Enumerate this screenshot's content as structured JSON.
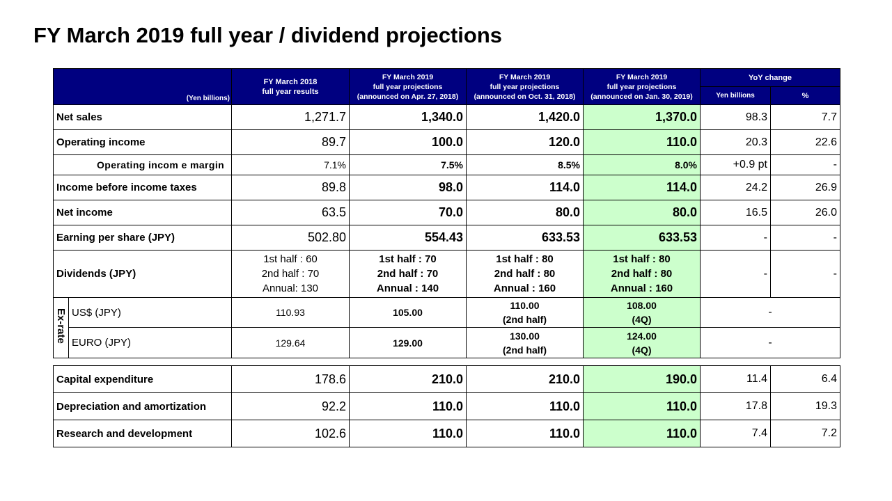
{
  "title": "FY March 2019 full year / dividend projections",
  "header": {
    "unit": "(Yen billions)",
    "col1": "FY March 2018\nfull year results",
    "col2": "FY March 2019\nfull year projections\n(announced on Apr. 27, 2018)",
    "col3": "FY March 2019\nfull year projections\n(announced on Oct. 31, 2018)",
    "col4": "FY March 2019\nfull year projections\n(announced on Jan. 30, 2019)",
    "yoy": "YoY change",
    "yoy_yen": "Yen billions",
    "yoy_pct": "%"
  },
  "rows": [
    {
      "label": "Net sales",
      "fy2018": "1,271.7",
      "apr": "1,340.0",
      "oct": "1,420.0",
      "jan": "1,370.0",
      "yoy_yen": "98.3",
      "yoy_pct": "7.7"
    },
    {
      "label": "Operating income",
      "fy2018": "89.7",
      "apr": "100.0",
      "oct": "120.0",
      "jan": "110.0",
      "yoy_yen": "20.3",
      "yoy_pct": "22.6"
    },
    {
      "label": "Operating incom e margin",
      "fy2018": "7.1%",
      "apr": "7.5%",
      "oct": "8.5%",
      "jan": "8.0%",
      "yoy_yen": "+0.9 pt",
      "yoy_pct": "-"
    },
    {
      "label": "Income before income taxes",
      "fy2018": "89.8",
      "apr": "98.0",
      "oct": "114.0",
      "jan": "114.0",
      "yoy_yen": "24.2",
      "yoy_pct": "26.9"
    },
    {
      "label": "Net income",
      "fy2018": "63.5",
      "apr": "70.0",
      "oct": "80.0",
      "jan": "80.0",
      "yoy_yen": "16.5",
      "yoy_pct": "26.0"
    },
    {
      "label": "Earning per share (JPY)",
      "fy2018": "502.80",
      "apr": "554.43",
      "oct": "633.53",
      "jan": "633.53",
      "yoy_yen": "-",
      "yoy_pct": "-"
    },
    {
      "label": "Dividends (JPY)",
      "fy2018": "1st half : 60\n2nd half : 70\nAnnual: 130",
      "apr": "1st half : 70\n2nd half : 70\nAnnual : 140",
      "oct": "1st half : 80\n2nd half : 80\nAnnual : 160",
      "jan": "1st half : 80\n2nd half : 80\nAnnual : 160",
      "yoy_yen": "-",
      "yoy_pct": "-"
    }
  ],
  "exrate": {
    "group_label": "Ex-rate",
    "rows": [
      {
        "label": "US$ (JPY)",
        "fy2018": "110.93",
        "apr": "105.00",
        "oct": "110.00\n(2nd half)",
        "jan": "108.00\n(4Q)",
        "yoy": "-"
      },
      {
        "label": "EURO (JPY)",
        "fy2018": "129.64",
        "apr": "129.00",
        "oct": "130.00\n(2nd half)",
        "jan": "124.00\n(4Q)",
        "yoy": "-"
      }
    ]
  },
  "rows2": [
    {
      "label": "Capital expenditure",
      "fy2018": "178.6",
      "apr": "210.0",
      "oct": "210.0",
      "jan": "190.0",
      "yoy_yen": "11.4",
      "yoy_pct": "6.4"
    },
    {
      "label": "Depreciation and amortization",
      "fy2018": "92.2",
      "apr": "110.0",
      "oct": "110.0",
      "jan": "110.0",
      "yoy_yen": "17.8",
      "yoy_pct": "19.3"
    },
    {
      "label": "Research and development",
      "fy2018": "102.6",
      "apr": "110.0",
      "oct": "110.0",
      "jan": "110.0",
      "yoy_yen": "7.4",
      "yoy_pct": "7.2"
    }
  ],
  "colors": {
    "header_bg": "#000080",
    "highlight": "#ccffcc"
  }
}
